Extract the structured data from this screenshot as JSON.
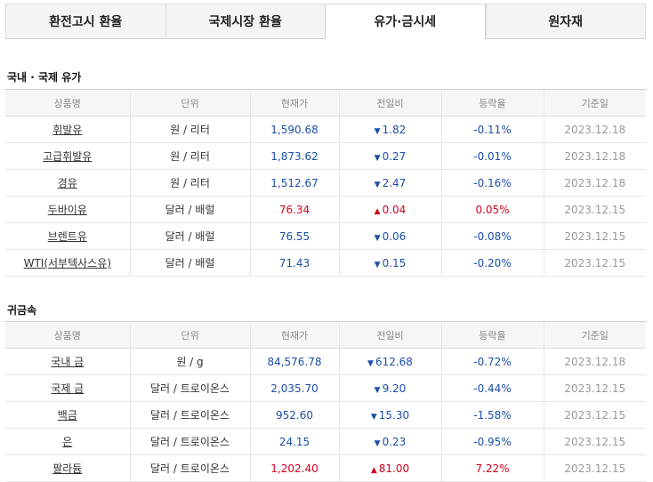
{
  "tabs": [
    {
      "label": "환전고시 환율",
      "active": false
    },
    {
      "label": "국제시장 환율",
      "active": false
    },
    {
      "label": "유가·금시세",
      "active": true
    },
    {
      "label": "원자재",
      "active": false
    }
  ],
  "oil": {
    "title": "국내 · 국제 유가",
    "headers": [
      "상품명",
      "단위",
      "현재가",
      "전일비",
      "등락율",
      "기준일"
    ],
    "rows": [
      {
        "name": "휘발유",
        "unit": "원 / 리터",
        "price": "1,590.68",
        "change": "1.82",
        "dir": "down",
        "rate": "-0.11%",
        "date": "2023.12.18"
      },
      {
        "name": "고급휘발유",
        "unit": "원 / 리터",
        "price": "1,873.62",
        "change": "0.27",
        "dir": "down",
        "rate": "-0.01%",
        "date": "2023.12.18"
      },
      {
        "name": "경유",
        "unit": "원 / 리터",
        "price": "1,512.67",
        "change": "2.47",
        "dir": "down",
        "rate": "-0.16%",
        "date": "2023.12.18"
      },
      {
        "name": "두바이유",
        "unit": "달러 / 배럴",
        "price": "76.34",
        "change": "0.04",
        "dir": "up",
        "rate": "0.05%",
        "date": "2023.12.15"
      },
      {
        "name": "브렌트유",
        "unit": "달러 / 배럴",
        "price": "76.55",
        "change": "0.06",
        "dir": "down",
        "rate": "-0.08%",
        "date": "2023.12.15"
      },
      {
        "name": "WTI(서부텍사스유)",
        "unit": "달러 / 배럴",
        "price": "71.43",
        "change": "0.15",
        "dir": "down",
        "rate": "-0.20%",
        "date": "2023.12.15"
      }
    ]
  },
  "metal": {
    "title": "귀금속",
    "headers": [
      "상품명",
      "단위",
      "현재가",
      "전일비",
      "등락율",
      "기준일"
    ],
    "rows": [
      {
        "name": "국내 금",
        "unit": "원 / g",
        "price": "84,576.78",
        "change": "612.68",
        "dir": "down",
        "rate": "-0.72%",
        "date": "2023.12.18"
      },
      {
        "name": "국제 금",
        "unit": "달러 / 트로이온스",
        "price": "2,035.70",
        "change": "9.20",
        "dir": "down",
        "rate": "-0.44%",
        "date": "2023.12.15"
      },
      {
        "name": "백금",
        "unit": "달러 / 트로이온스",
        "price": "952.60",
        "change": "15.30",
        "dir": "down",
        "rate": "-1.58%",
        "date": "2023.12.15"
      },
      {
        "name": "은",
        "unit": "달러 / 트로이온스",
        "price": "24.15",
        "change": "0.23",
        "dir": "down",
        "rate": "-0.95%",
        "date": "2023.12.15"
      },
      {
        "name": "팔라듐",
        "unit": "달러 / 트로이온스",
        "price": "1,202.40",
        "change": "81.00",
        "dir": "up",
        "rate": "7.22%",
        "date": "2023.12.15"
      }
    ]
  },
  "icons": {
    "down": "▼",
    "up": "▲"
  }
}
